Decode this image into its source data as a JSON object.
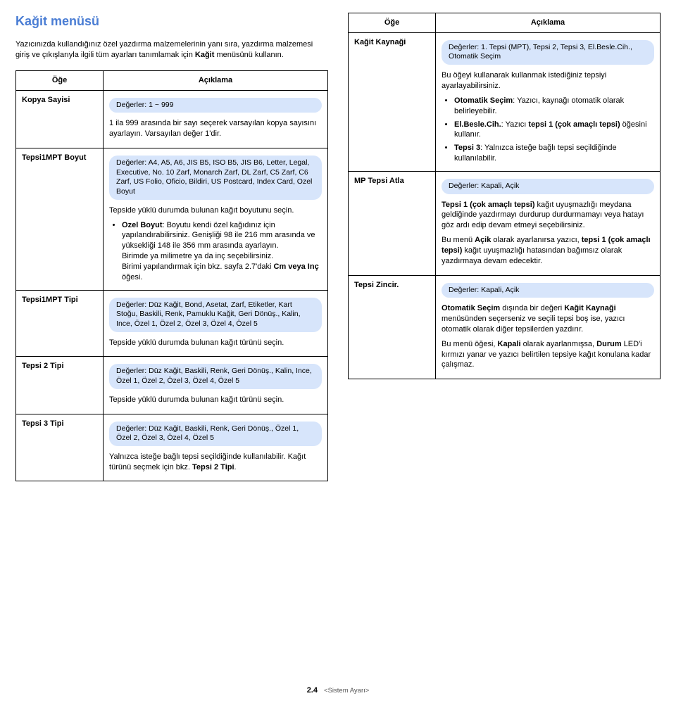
{
  "title": "Kağit menüsü",
  "intro_prefix": "Yazıcınızda kullandığınız özel yazdırma malzemelerinin yanı sıra, yazdırma malzemesi giriş ve çıkışlarıyla ilgili tüm ayarları tanımlamak için ",
  "intro_bold": "Kağit",
  "intro_suffix": " menüsünü kullanın.",
  "hdr_item": "Öğe",
  "hdr_desc": "Açıklama",
  "r1_label": "Kopya Sayisi",
  "r1_pill": "Değerler: 1 ~ 999",
  "r1_desc": "1 ila 999 arasında bir sayı seçerek varsayılan kopya sayısını ayarlayın. Varsayılan değer 1'dir.",
  "r2_label": "Tepsi1MPT Boyut",
  "r2_pill": "Değerler: A4, A5, A6, JIS B5, ISO B5, JIS B6, Letter, Legal, Executive, No. 10 Zarf, Monarch Zarf, DL Zarf, C5 Zarf, C6 Zarf, US Folio, Oficio, Bildiri, US Postcard, Index Card, Ozel Boyut",
  "r2_desc1": "Tepside yüklü durumda bulunan kağıt boyutunu seçin.",
  "r2_li1_b": "Ozel Boyut",
  "r2_li1_t": ": Boyutu kendi özel kağıdınız için yapılandırabilirsiniz. Genişliği 98 ile 216 mm arasında ve yüksekliği 148 ile 356 mm arasında ayarlayın.",
  "r2_desc2a": "Birimde ya milimetre ya da inç seçebilirsiniz.",
  "r2_desc2b_a": "Birimi yapılandırmak için bkz. sayfa 2.7'daki ",
  "r2_desc2b_b": "Cm veya Inç",
  "r2_desc2b_c": " öğesi.",
  "r3_label": "Tepsi1MPT Tipi",
  "r3_pill": "Değerler: Düz Kağit, Bond, Asetat, Zarf, Etiketler, Kart Stoğu, Baskili, Renk, Pamuklu Kağit, Geri Dönüş., Kalin, Ince, Özel 1, Özel 2, Özel 3, Özel 4, Özel 5",
  "r3_desc": "Tepside yüklü durumda bulunan kağıt türünü seçin.",
  "r4_label": "Tepsi 2 Tipi",
  "r4_pill": "Değerler: Düz Kağit, Baskili, Renk, Geri Dönüş., Kalin, Ince, Özel 1, Özel 2, Özel 3, Özel 4, Özel 5",
  "r4_desc": "Tepside yüklü durumda bulunan kağıt türünü seçin.",
  "r5_label": "Tepsi 3 Tipi",
  "r5_pill": "Değerler: Düz Kağit, Baskili, Renk, Geri Dönüş., Özel 1, Özel 2, Özel 3, Özel 4, Özel 5",
  "r5_desc_a": "Yalnızca isteğe bağlı tepsi seçildiğinde kullanılabilir. Kağıt türünü seçmek için bkz. ",
  "r5_desc_b": "Tepsi 2 Tipi",
  "r5_desc_c": ".",
  "rr1_label": "Kağit Kaynaği",
  "rr1_pill": "Değerler: 1. Tepsi (MPT), Tepsi 2, Tepsi 3, El.Besle.Cih., Otomatik Seçim",
  "rr1_desc": "Bu öğeyi kullanarak kullanmak istediğiniz tepsiyi ayarlayabilirsiniz.",
  "rr1_li1_b": "Otomatik Seçim",
  "rr1_li1_t": ": Yazıcı, kaynağı otomatik olarak belirleyebilir.",
  "rr1_li2_b": "El.Besle.Cih.",
  "rr1_li2_ta": ": Yazıcı ",
  "rr1_li2_tb": "tepsi 1 (çok amaçlı tepsi)",
  "rr1_li2_tc": " öğesini kullanır.",
  "rr1_li3_b": "Tepsi 3",
  "rr1_li3_t": ": Yalnızca isteğe bağlı tepsi seçildiğinde kullanılabilir.",
  "rr2_label": "MP Tepsi Atla",
  "rr2_pill": "Değerler: Kapali, Açik",
  "rr2_p1_a": "Tepsi 1 (çok amaçlı tepsi)",
  "rr2_p1_b": " kağıt uyuşmazlığı meydana geldiğinde yazdırmayı durdurup durdurmamayı veya hatayı göz ardı edip devam etmeyi seçebilirsiniz.",
  "rr2_p2_a": "Bu menü ",
  "rr2_p2_b": "Açik",
  "rr2_p2_c": " olarak ayarlanırsa yazıcı, ",
  "rr2_p2_d": "tepsi 1 (çok amaçlı tepsi)",
  "rr2_p2_e": " kağıt uyuşmazlığı hatasından bağımsız olarak yazdırmaya devam edecektir.",
  "rr3_label": "Tepsi Zincir.",
  "rr3_pill": "Değerler: Kapali, Açik",
  "rr3_p1_a": "Otomatik Seçim",
  "rr3_p1_b": " dışında bir değeri ",
  "rr3_p1_c": "Kağit Kaynaği",
  "rr3_p1_d": " menüsünden seçerseniz ve seçili tepsi boş ise, yazıcı otomatik olarak diğer tepsilerden yazdırır.",
  "rr3_p2_a": "Bu menü öğesi, ",
  "rr3_p2_b": "Kapali",
  "rr3_p2_c": " olarak ayarlanmışsa, ",
  "rr3_p2_d": "Durum",
  "rr3_p2_e": " LED'i kırmızı yanar ve yazıcı belirtilen tepsiye kağıt konulana kadar çalışmaz.",
  "footer_page": "2.4",
  "footer_sec": "<Sistem Ayarı>"
}
